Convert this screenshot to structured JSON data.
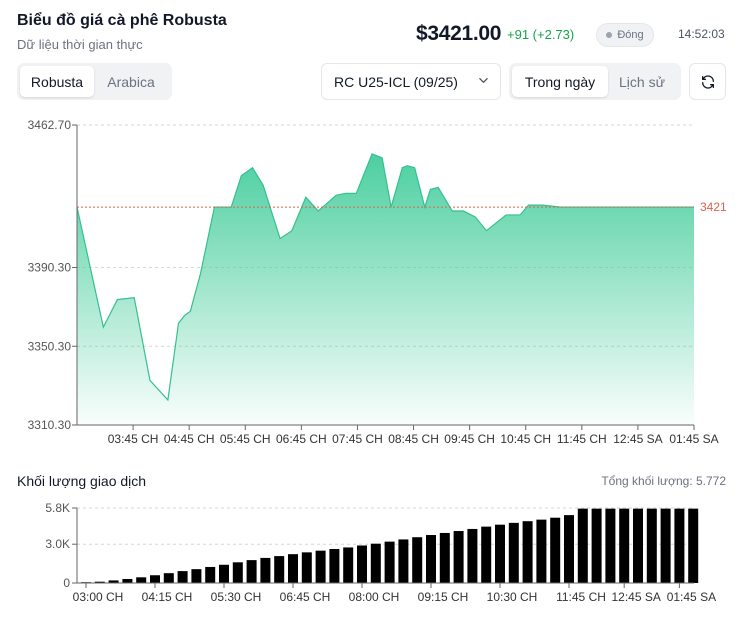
{
  "header": {
    "title": "Biểu đồ giá cà phê Robusta",
    "subtitle": "Dữ liệu thời gian thực",
    "price": "$3421.00",
    "change": "+91 (+2.73)",
    "status": "Đóng",
    "clock": "14:52:03"
  },
  "commodity_tabs": [
    {
      "label": "Robusta",
      "active": true
    },
    {
      "label": "Arabica",
      "active": false
    }
  ],
  "contract_select": {
    "value": "RC U25-ICL (09/25)"
  },
  "range_tabs": [
    {
      "label": "Trong ngày",
      "active": true
    },
    {
      "label": "Lịch sử",
      "active": false
    }
  ],
  "volume": {
    "title": "Khối lượng giao dịch",
    "total": "Tổng khối lượng: 5.772"
  },
  "colors": {
    "area_line": "#34c08f",
    "area_fill_top": "#4ccfa0",
    "ref_line": "#e0604a",
    "bar": "#000000",
    "grid": "#d6d6d6"
  },
  "chart_data": [
    {
      "type": "area",
      "ylim": [
        3310.3,
        3462.7
      ],
      "y_ticks": [
        "3462.70",
        "3390.30",
        "3350.30",
        "3310.30"
      ],
      "y_tick_values": [
        3462.7,
        3390.3,
        3350.3,
        3310.3
      ],
      "x_tick_labels": [
        "03:45 CH",
        "04:45 CH",
        "05:45 CH",
        "06:45 CH",
        "07:45 CH",
        "08:45 CH",
        "09:45 CH",
        "10:45 CH",
        "11:45 CH",
        "12:45 SA",
        "01:45 SA"
      ],
      "x_start": 0,
      "x_end": 11,
      "x_tick_positions": [
        1,
        2,
        3,
        4,
        5,
        6,
        7,
        8,
        9,
        10,
        11
      ],
      "reference": {
        "value": 3421,
        "label": "3421"
      },
      "series": [
        {
          "x": [
            0,
            0.47,
            0.72,
            1.02,
            1.3,
            1.62,
            1.81,
            1.92,
            2.02,
            2.2,
            2.45,
            2.62,
            2.75,
            2.93,
            3.13,
            3.32,
            3.62,
            3.83,
            4.08,
            4.3,
            4.62,
            4.79,
            4.98,
            5.26,
            5.44,
            5.6,
            5.8,
            5.89,
            6.02,
            6.2,
            6.3,
            6.44,
            6.69,
            6.89,
            7.1,
            7.3,
            7.65,
            7.9,
            8.05,
            8.3,
            8.62,
            9.0,
            9.5,
            10.0,
            10.5,
            11.0
          ],
          "values": [
            3421,
            3360,
            3374,
            3375,
            3333,
            3323,
            3362,
            3366,
            3368,
            3387,
            3421,
            3421,
            3421,
            3437,
            3441,
            3432,
            3405,
            3409,
            3426,
            3419,
            3427,
            3428,
            3428,
            3448,
            3446,
            3421,
            3441,
            3442,
            3441,
            3421,
            3430,
            3431,
            3419,
            3419,
            3416,
            3409,
            3417,
            3417,
            3422,
            3422,
            3421,
            3421,
            3421,
            3421,
            3421,
            3421
          ]
        }
      ]
    },
    {
      "type": "bar",
      "ylim": [
        0,
        5.8
      ],
      "y_ticks": [
        "5.8K",
        "3.0K",
        "0"
      ],
      "y_tick_values": [
        5.8,
        3.0,
        0
      ],
      "y_unit": "K",
      "x_tick_labels": [
        "03:00 CH",
        "04:15 CH",
        "05:30 CH",
        "06:45 CH",
        "08:00 CH",
        "09:15 CH",
        "10:30 CH",
        "11:45 CH",
        "12:45 SA",
        "01:45 SA"
      ],
      "x_tick_indices": [
        0,
        5,
        10,
        15,
        20,
        25,
        30,
        35,
        39,
        43
      ],
      "values": [
        0.03,
        0.1,
        0.2,
        0.31,
        0.44,
        0.6,
        0.76,
        0.92,
        1.07,
        1.24,
        1.41,
        1.6,
        1.77,
        1.94,
        2.08,
        2.23,
        2.37,
        2.5,
        2.63,
        2.75,
        2.9,
        3.04,
        3.2,
        3.37,
        3.54,
        3.71,
        3.87,
        4.02,
        4.18,
        4.36,
        4.51,
        4.65,
        4.78,
        4.9,
        5.05,
        5.25,
        5.75,
        5.75,
        5.75,
        5.75,
        5.75,
        5.75,
        5.75,
        5.75,
        5.75
      ]
    }
  ]
}
